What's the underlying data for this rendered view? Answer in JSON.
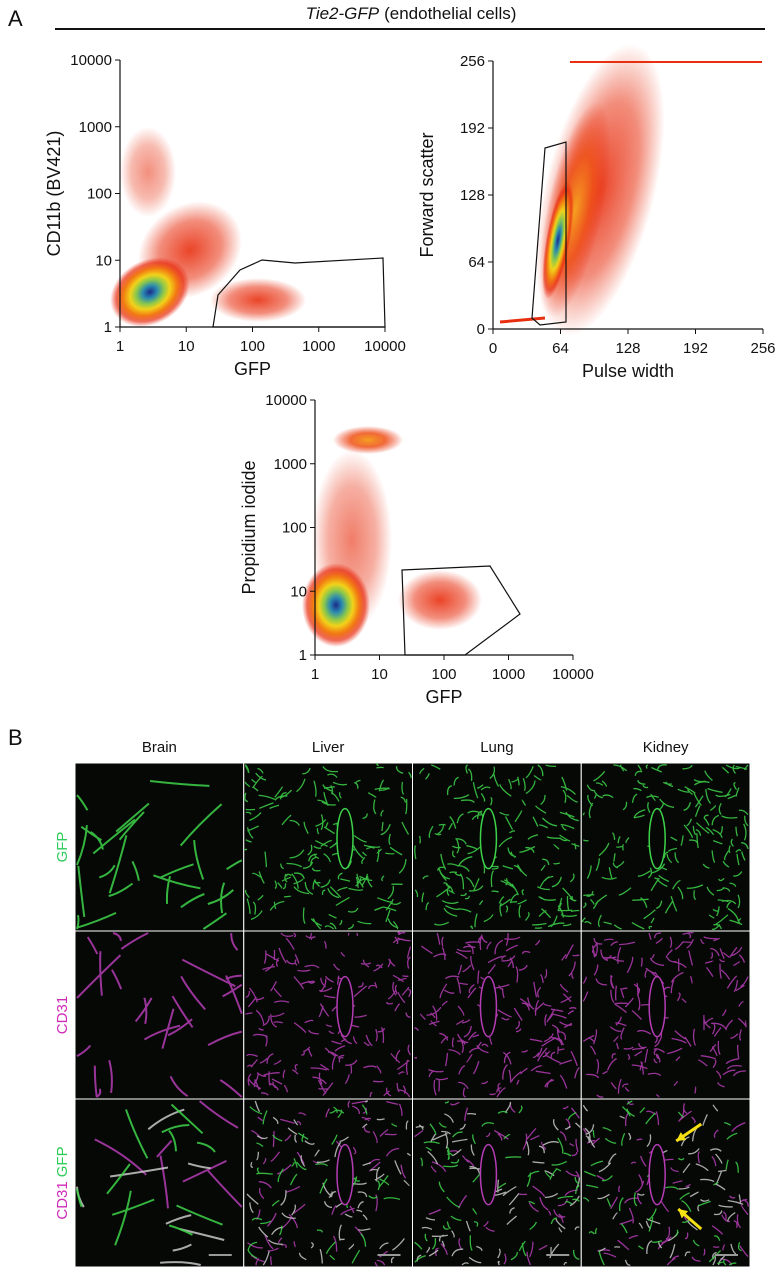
{
  "figure_label_a": "A",
  "header": {
    "title_italic": "Tie2-GFP",
    "title_rest": "(endothelial cells)"
  },
  "chart_data": [
    {
      "type": "scatter",
      "xlabel": "GFP",
      "ylabel": "CD11b (BV421)",
      "xscale": "log",
      "yscale": "log",
      "xlim": [
        1,
        10000
      ],
      "ylim": [
        1,
        10000
      ],
      "xticks": [
        1,
        10,
        100,
        1000,
        10000
      ],
      "yticks": [
        1,
        10,
        100,
        1000,
        10000
      ]
    },
    {
      "type": "scatter",
      "xlabel": "Pulse width",
      "ylabel": "Forward scatter",
      "xscale": "linear",
      "yscale": "linear",
      "xlim": [
        0,
        256
      ],
      "ylim": [
        0,
        256
      ],
      "xticks": [
        0,
        64,
        128,
        192,
        256
      ],
      "yticks": [
        0,
        64,
        128,
        192,
        256
      ]
    },
    {
      "type": "scatter",
      "xlabel": "GFP",
      "ylabel": "Propidium iodide",
      "xscale": "log",
      "yscale": "log",
      "xlim": [
        1,
        10000
      ],
      "ylim": [
        1,
        10000
      ],
      "xticks": [
        1,
        10,
        100,
        1000,
        10000
      ],
      "yticks": [
        1,
        10,
        100,
        1000,
        10000
      ]
    }
  ],
  "panel_b": {
    "label": "B",
    "columns": [
      "Brain",
      "Liver",
      "Lung",
      "Kidney"
    ],
    "rows": [
      [
        "GFP"
      ],
      [
        "CD31"
      ],
      [
        "CD31",
        "GFP"
      ]
    ]
  }
}
